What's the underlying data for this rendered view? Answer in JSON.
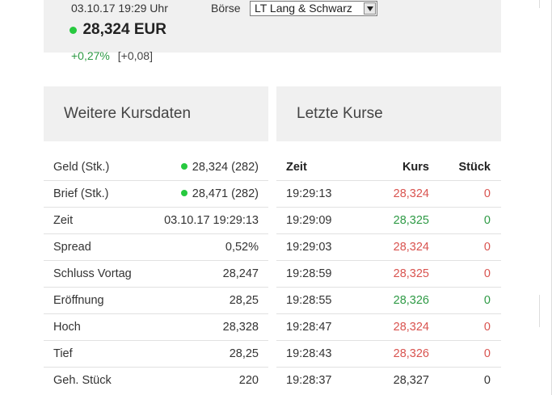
{
  "quote": {
    "datetime": "03.10.17  19:29 Uhr",
    "price": "28,324 EUR",
    "change_pct": "+0,27%",
    "change_abs": "[+0,08]",
    "status_color": "#27c93f"
  },
  "exchange": {
    "label": "Börse",
    "selected": "LT Lang & Schwarz"
  },
  "weitere": {
    "title": "Weitere Kursdaten",
    "rows": [
      {
        "label": "Geld (Stk.)",
        "value": "28,324 (282)",
        "dot": true
      },
      {
        "label": "Brief (Stk.)",
        "value": "28,471 (282)",
        "dot": true
      },
      {
        "label": "Zeit",
        "value": "03.10.17 19:29:13"
      },
      {
        "label": "Spread",
        "value": "0,52%"
      },
      {
        "label": "Schluss Vortag",
        "value": "28,247"
      },
      {
        "label": "Eröffnung",
        "value": "28,25"
      },
      {
        "label": "Hoch",
        "value": "28,328"
      },
      {
        "label": "Tief",
        "value": "28,25"
      },
      {
        "label": "Geh. Stück",
        "value": "220"
      }
    ]
  },
  "letzte": {
    "title": "Letzte Kurse",
    "headers": {
      "zeit": "Zeit",
      "kurs": "Kurs",
      "stueck": "Stück"
    },
    "rows": [
      {
        "zeit": "19:29:13",
        "kurs": "28,324",
        "stueck": "0",
        "trend": "down"
      },
      {
        "zeit": "19:29:09",
        "kurs": "28,325",
        "stueck": "0",
        "trend": "up"
      },
      {
        "zeit": "19:29:03",
        "kurs": "28,324",
        "stueck": "0",
        "trend": "down"
      },
      {
        "zeit": "19:28:59",
        "kurs": "28,325",
        "stueck": "0",
        "trend": "down"
      },
      {
        "zeit": "19:28:55",
        "kurs": "28,326",
        "stueck": "0",
        "trend": "up"
      },
      {
        "zeit": "19:28:47",
        "kurs": "28,324",
        "stueck": "0",
        "trend": "down"
      },
      {
        "zeit": "19:28:43",
        "kurs": "28,326",
        "stueck": "0",
        "trend": "down"
      },
      {
        "zeit": "19:28:37",
        "kurs": "28,327",
        "stueck": "0",
        "trend": "neutral"
      }
    ]
  }
}
